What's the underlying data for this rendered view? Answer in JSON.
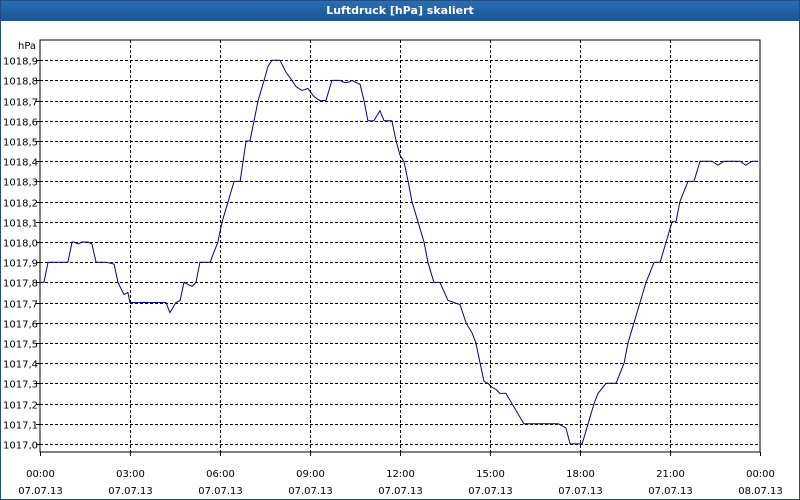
{
  "window": {
    "title": "Luftdruck [hPa] skaliert"
  },
  "chart_data": {
    "type": "line",
    "title": "Luftdruck [hPa] skaliert",
    "ylabel": "hPa",
    "xlabel": "",
    "ylim": [
      1016.96,
      1019.0
    ],
    "xlim": [
      0,
      24
    ],
    "grid": true,
    "y_ticks": [
      "1017,0",
      "1017,1",
      "1017,2",
      "1017,3",
      "1017,4",
      "1017,5",
      "1017,6",
      "1017,7",
      "1017,8",
      "1017,9",
      "1018,0",
      "1018,1",
      "1018,2",
      "1018,3",
      "1018,4",
      "1018,5",
      "1018,6",
      "1018,7",
      "1018,8",
      "1018,9"
    ],
    "x_ticks": [
      {
        "time": "00:00",
        "date": "07.07.13"
      },
      {
        "time": "03:00",
        "date": "07.07.13"
      },
      {
        "time": "06:00",
        "date": "07.07.13"
      },
      {
        "time": "09:00",
        "date": "07.07.13"
      },
      {
        "time": "12:00",
        "date": "07.07.13"
      },
      {
        "time": "15:00",
        "date": "07.07.13"
      },
      {
        "time": "18:00",
        "date": "07.07.13"
      },
      {
        "time": "21:00",
        "date": "07.07.13"
      },
      {
        "time": "00:00",
        "date": "08.07.13"
      }
    ],
    "series": [
      {
        "color": "#00008b",
        "x": [
          0.0,
          0.13,
          0.27,
          0.4,
          0.6,
          0.8,
          0.93,
          1.07,
          1.13,
          1.27,
          1.4,
          1.6,
          1.73,
          1.87,
          2.0,
          2.2,
          2.47,
          2.6,
          2.73,
          2.8,
          2.93,
          3.0,
          3.13,
          3.33,
          3.67,
          3.93,
          4.2,
          4.33,
          4.53,
          4.67,
          4.8,
          4.93,
          5.07,
          5.2,
          5.33,
          5.53,
          5.67,
          5.8,
          5.93,
          6.07,
          6.27,
          6.47,
          6.67,
          6.87,
          7.0,
          7.27,
          7.47,
          7.6,
          7.73,
          8.0,
          8.2,
          8.4,
          8.53,
          8.73,
          8.93,
          9.13,
          9.33,
          9.53,
          9.73,
          9.87,
          10.0,
          10.13,
          10.27,
          10.4,
          10.53,
          10.67,
          10.8,
          10.93,
          11.13,
          11.33,
          11.47,
          11.6,
          11.73,
          11.87,
          12.0,
          12.13,
          12.27,
          12.4,
          12.6,
          12.8,
          12.93,
          13.13,
          13.33,
          13.6,
          13.8,
          14.0,
          14.2,
          14.4,
          14.53,
          14.67,
          14.8,
          14.93,
          15.07,
          15.2,
          15.33,
          15.53,
          15.73,
          15.93,
          16.13,
          16.33,
          16.47,
          16.67,
          16.87,
          17.07,
          17.27,
          17.4,
          17.53,
          17.67,
          17.87,
          18.07,
          18.27,
          18.47,
          18.6,
          18.87,
          19.0,
          19.2,
          19.47,
          19.6,
          19.8,
          20.0,
          20.2,
          20.47,
          20.67,
          20.87,
          21.07,
          21.2,
          21.33,
          21.6,
          21.8,
          22.0,
          22.2,
          22.4,
          22.6,
          22.8,
          22.93,
          23.13,
          23.33,
          23.53,
          23.73,
          23.93
        ],
        "values": [
          1017.8,
          1017.8,
          1017.9,
          1017.9,
          1017.9,
          1017.9,
          1017.9,
          1018.0,
          1018.0,
          1017.99,
          1018.0,
          1018.0,
          1017.99,
          1017.9,
          1017.9,
          1017.9,
          1017.89,
          1017.8,
          1017.76,
          1017.74,
          1017.75,
          1017.7,
          1017.7,
          1017.7,
          1017.7,
          1017.7,
          1017.7,
          1017.65,
          1017.7,
          1017.71,
          1017.8,
          1017.79,
          1017.78,
          1017.8,
          1017.9,
          1017.9,
          1017.9,
          1017.95,
          1018.0,
          1018.1,
          1018.2,
          1018.3,
          1018.3,
          1018.5,
          1018.5,
          1018.7,
          1018.8,
          1018.87,
          1018.9,
          1018.9,
          1018.84,
          1018.8,
          1018.77,
          1018.75,
          1018.76,
          1018.72,
          1018.7,
          1018.7,
          1018.8,
          1018.8,
          1018.8,
          1018.79,
          1018.79,
          1018.8,
          1018.79,
          1018.78,
          1018.7,
          1018.6,
          1018.6,
          1018.65,
          1018.6,
          1018.6,
          1018.6,
          1018.5,
          1018.43,
          1018.4,
          1018.3,
          1018.2,
          1018.1,
          1018.0,
          1017.9,
          1017.8,
          1017.8,
          1017.71,
          1017.7,
          1017.69,
          1017.6,
          1017.55,
          1017.5,
          1017.4,
          1017.31,
          1017.3,
          1017.28,
          1017.27,
          1017.25,
          1017.25,
          1017.2,
          1017.15,
          1017.1,
          1017.1,
          1017.1,
          1017.1,
          1017.1,
          1017.1,
          1017.1,
          1017.09,
          1017.08,
          1017.0,
          1017.0,
          1017.0,
          1017.1,
          1017.2,
          1017.25,
          1017.3,
          1017.3,
          1017.3,
          1017.4,
          1017.5,
          1017.6,
          1017.7,
          1017.8,
          1017.9,
          1017.9,
          1018.0,
          1018.1,
          1018.1,
          1018.2,
          1018.3,
          1018.3,
          1018.4,
          1018.4,
          1018.4,
          1018.38,
          1018.4,
          1018.4,
          1018.4,
          1018.4,
          1018.38,
          1018.4,
          1018.4
        ]
      }
    ]
  }
}
